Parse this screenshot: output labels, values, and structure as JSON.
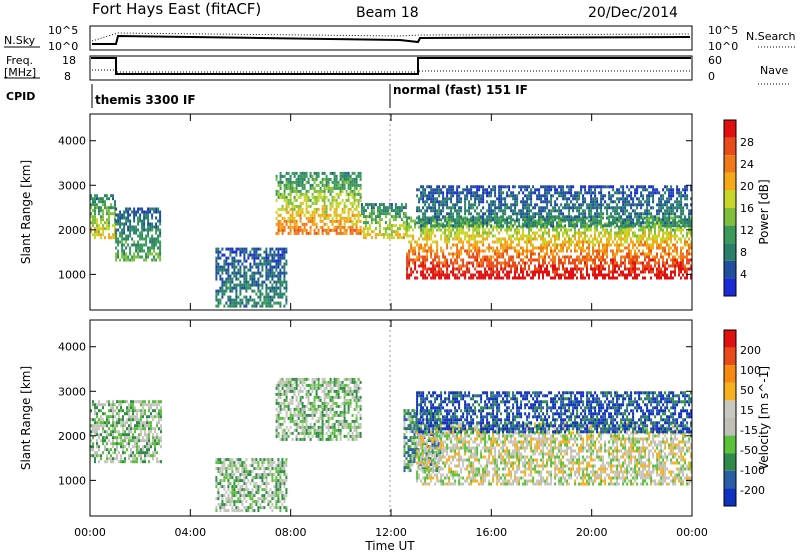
{
  "header": {
    "title": "Fort Hays East (fitACF)",
    "beam": "Beam 18",
    "date": "20/Dec/2014"
  },
  "status_panels": {
    "nsky_label": "N.Sky",
    "nsky_ticks": [
      "10^5",
      "10^0"
    ],
    "nsearch_label": "N.Search",
    "nsearch_ticks": [
      "10^5",
      "10^0"
    ],
    "freq_label_1": "Freq.",
    "freq_label_2": "[MHz]",
    "freq_ticks": [
      "18",
      "8"
    ],
    "nave_label": "Nave",
    "nave_ticks": [
      "60",
      "0"
    ],
    "cpid_label": "CPID",
    "cpid_1": "themis 3300 IF",
    "cpid_2": "normal (fast) 151 IF"
  },
  "colors": {
    "power": [
      "#1a2bd6",
      "#1f4f9e",
      "#2a7f6a",
      "#3a9a5a",
      "#7fbf3c",
      "#c8d62a",
      "#f5a818",
      "#f07a1a",
      "#e84a1a",
      "#e01010"
    ],
    "velocity": [
      "#1030c0",
      "#2a5fa8",
      "#2f8a4c",
      "#5ac23a",
      "#c0c0b8",
      "#c8c8c0",
      "#f5b020",
      "#f58a10",
      "#e84a1a",
      "#e01010"
    ]
  },
  "chart_data": [
    {
      "type": "heatmap",
      "title": "Fort Hays East (fitACF)",
      "xlabel": "Time UT",
      "ylabel": "Slant Range [km]",
      "x_ticks": [
        "00:00",
        "04:00",
        "08:00",
        "12:00",
        "16:00",
        "20:00",
        "00:00"
      ],
      "y_ticks": [
        1000,
        2000,
        3000,
        4000
      ],
      "xlim": [
        0,
        24
      ],
      "ylim": [
        200,
        4600
      ],
      "colorbar": {
        "label": "Power [dB]",
        "ticks": [
          "4",
          "8",
          "12",
          "16",
          "20",
          "24",
          "28"
        ]
      },
      "echo_regions_description_units": "hours UT vs km",
      "bands": [
        {
          "t0": 0.0,
          "t1": 1.0,
          "r0": 1800,
          "r1": 2800,
          "level": 5
        },
        {
          "t0": 1.0,
          "t1": 2.8,
          "r0": 1300,
          "r1": 2500,
          "level": 3
        },
        {
          "t0": 5.0,
          "t1": 7.8,
          "r0": 300,
          "r1": 1600,
          "level": 2
        },
        {
          "t0": 7.4,
          "t1": 10.8,
          "r0": 1900,
          "r1": 3300,
          "level": 6
        },
        {
          "t0": 10.8,
          "t1": 12.6,
          "r0": 1800,
          "r1": 2600,
          "level": 5
        },
        {
          "t0": 12.6,
          "t1": 24.0,
          "r0": 950,
          "r1": 2300,
          "level": 8
        },
        {
          "t0": 13.0,
          "t1": 24.0,
          "r0": 2100,
          "r1": 3000,
          "level": 2
        }
      ]
    },
    {
      "type": "heatmap",
      "xlabel": "Time UT",
      "ylabel": "Slant Range [km]",
      "x_ticks": [
        "00:00",
        "04:00",
        "08:00",
        "12:00",
        "16:00",
        "20:00",
        "00:00"
      ],
      "y_ticks": [
        1000,
        2000,
        3000,
        4000
      ],
      "xlim": [
        0,
        24
      ],
      "ylim": [
        200,
        4600
      ],
      "colorbar": {
        "label": "Velocity [m s^-1]",
        "ticks": [
          "200",
          "100",
          "50",
          "15",
          "-15",
          "-50",
          "-100",
          "-200"
        ]
      },
      "bands": [
        {
          "t0": 0.0,
          "t1": 2.8,
          "r0": 1400,
          "r1": 2800,
          "level": 4
        },
        {
          "t0": 5.0,
          "t1": 7.8,
          "r0": 300,
          "r1": 1500,
          "level": 4
        },
        {
          "t0": 7.4,
          "t1": 10.8,
          "r0": 1900,
          "r1": 3300,
          "level": 4
        },
        {
          "t0": 12.5,
          "t1": 14.0,
          "r0": 1200,
          "r1": 2600,
          "level": 3
        },
        {
          "t0": 13.0,
          "t1": 24.0,
          "r0": 950,
          "r1": 2300,
          "level": 5
        },
        {
          "t0": 13.0,
          "t1": 24.0,
          "r0": 2100,
          "r1": 3000,
          "level": 1
        }
      ]
    }
  ]
}
